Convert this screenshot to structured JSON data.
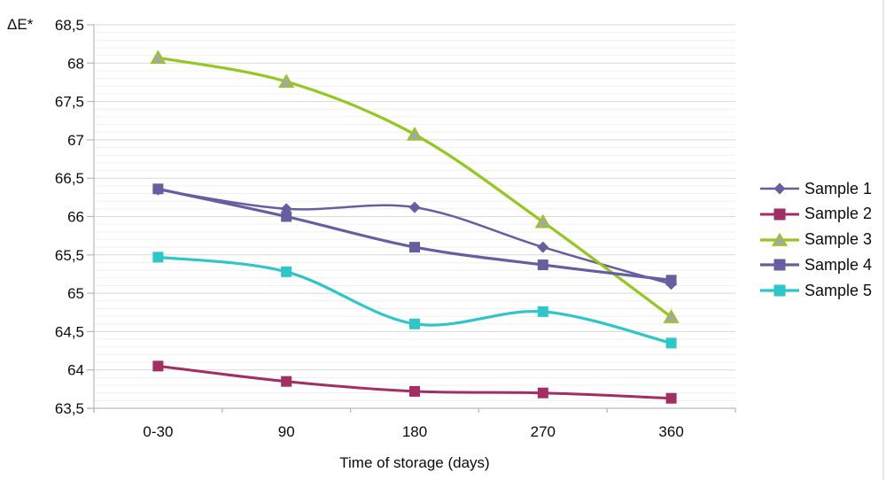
{
  "chart_data": {
    "type": "line",
    "title": "",
    "xlabel": "Time of storage (days)",
    "ylabel": "ΔE*",
    "x_categories": [
      "0-30",
      "90",
      "180",
      "270",
      "360"
    ],
    "y_tick_labels": [
      "68,5",
      "68",
      "67,5",
      "67",
      "66,5",
      "66",
      "65,5",
      "65",
      "64,5",
      "64",
      "63,5"
    ],
    "ylim": [
      63.5,
      68.5
    ],
    "y_major_step": 0.5,
    "y_minor_step": 0.1,
    "grid": "horizontal major + minor",
    "line_style": "smoothed",
    "legend_position": "right",
    "decimal_separator": ",",
    "series": [
      {
        "name": "Sample 1",
        "color": "#655fa2",
        "marker": "diamond",
        "line_width": 2.5,
        "values": [
          66.35,
          66.1,
          66.12,
          65.6,
          65.12
        ]
      },
      {
        "name": "Sample 2",
        "color": "#a22e63",
        "marker": "square",
        "line_width": 3,
        "values": [
          64.05,
          63.85,
          63.72,
          63.7,
          63.63
        ]
      },
      {
        "name": "Sample 3",
        "color": "#95c81e",
        "marker": "triangle",
        "marker_fill": "#a6a6a6",
        "line_width": 3.2,
        "values": [
          68.07,
          67.76,
          67.07,
          65.93,
          64.69
        ]
      },
      {
        "name": "Sample 4",
        "color": "#655fa2",
        "marker": "square",
        "line_width": 3.2,
        "values": [
          66.36,
          66.0,
          65.6,
          65.37,
          65.17
        ]
      },
      {
        "name": "Sample 5",
        "color": "#2ec6c8",
        "marker": "square",
        "line_width": 3.2,
        "values": [
          65.47,
          65.28,
          64.6,
          64.76,
          64.35
        ]
      }
    ]
  }
}
